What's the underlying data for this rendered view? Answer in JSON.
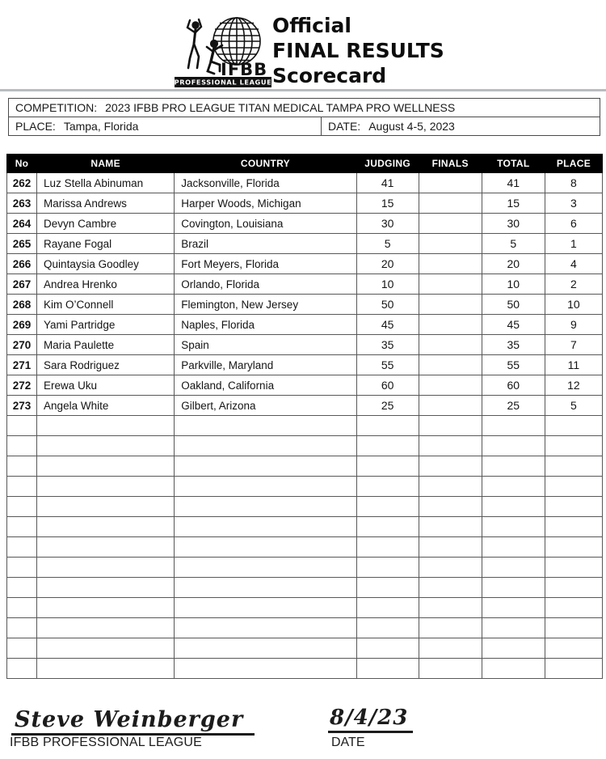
{
  "header": {
    "logo": {
      "ifbb_text": "IFBB",
      "banner_text": "PROFESSIONAL LEAGUE"
    },
    "title_line1": "Official",
    "title_line2": "FINAL RESULTS",
    "title_line3": "Scorecard"
  },
  "competition_info": {
    "competition_label": "COMPETITION:",
    "competition_value": "2023 IFBB PRO LEAGUE TITAN MEDICAL TAMPA PRO WELLNESS",
    "place_label": "PLACE:",
    "place_value": "Tampa, Florida",
    "date_label": "DATE:",
    "date_value": "August 4-5, 2023"
  },
  "results_table": {
    "columns": [
      "No",
      "NAME",
      "COUNTRY",
      "JUDGING",
      "FINALS",
      "TOTAL",
      "PLACE"
    ],
    "rows": [
      {
        "no": "262",
        "name": "Luz Stella Abinuman",
        "country": "Jacksonville, Florida",
        "judging": "41",
        "finals": "",
        "total": "41",
        "place": "8"
      },
      {
        "no": "263",
        "name": "Marissa Andrews",
        "country": "Harper Woods, Michigan",
        "judging": "15",
        "finals": "",
        "total": "15",
        "place": "3"
      },
      {
        "no": "264",
        "name": "Devyn Cambre",
        "country": "Covington, Louisiana",
        "judging": "30",
        "finals": "",
        "total": "30",
        "place": "6"
      },
      {
        "no": "265",
        "name": "Rayane Fogal",
        "country": "Brazil",
        "judging": "5",
        "finals": "",
        "total": "5",
        "place": "1"
      },
      {
        "no": "266",
        "name": "Quintaysia Goodley",
        "country": "Fort Meyers, Florida",
        "judging": "20",
        "finals": "",
        "total": "20",
        "place": "4"
      },
      {
        "no": "267",
        "name": "Andrea Hrenko",
        "country": "Orlando, Florida",
        "judging": "10",
        "finals": "",
        "total": "10",
        "place": "2"
      },
      {
        "no": "268",
        "name": "Kim O’Connell",
        "country": "Flemington, New Jersey",
        "judging": "50",
        "finals": "",
        "total": "50",
        "place": "10"
      },
      {
        "no": "269",
        "name": "Yami Partridge",
        "country": "Naples, Florida",
        "judging": "45",
        "finals": "",
        "total": "45",
        "place": "9"
      },
      {
        "no": "270",
        "name": "Maria Paulette",
        "country": "Spain",
        "judging": "35",
        "finals": "",
        "total": "35",
        "place": "7"
      },
      {
        "no": "271",
        "name": "Sara Rodriguez",
        "country": "Parkville, Maryland",
        "judging": "55",
        "finals": "",
        "total": "55",
        "place": "11"
      },
      {
        "no": "272",
        "name": "Erewa Uku",
        "country": "Oakland, California",
        "judging": "60",
        "finals": "",
        "total": "60",
        "place": "12"
      },
      {
        "no": "273",
        "name": "Angela White",
        "country": "Gilbert, Arizona",
        "judging": "25",
        "finals": "",
        "total": "25",
        "place": "5"
      }
    ],
    "empty_row_count": 13
  },
  "footer": {
    "signature_name": "Steve Weinberger",
    "signature_title": "IFBB PROFESSIONAL LEAGUE",
    "date_value": "8/4/23",
    "date_label": "DATE"
  },
  "colors": {
    "table_header_bg": "#000000",
    "table_header_text": "#ffffff",
    "border": "#585858",
    "text": "#1a1a1a"
  }
}
